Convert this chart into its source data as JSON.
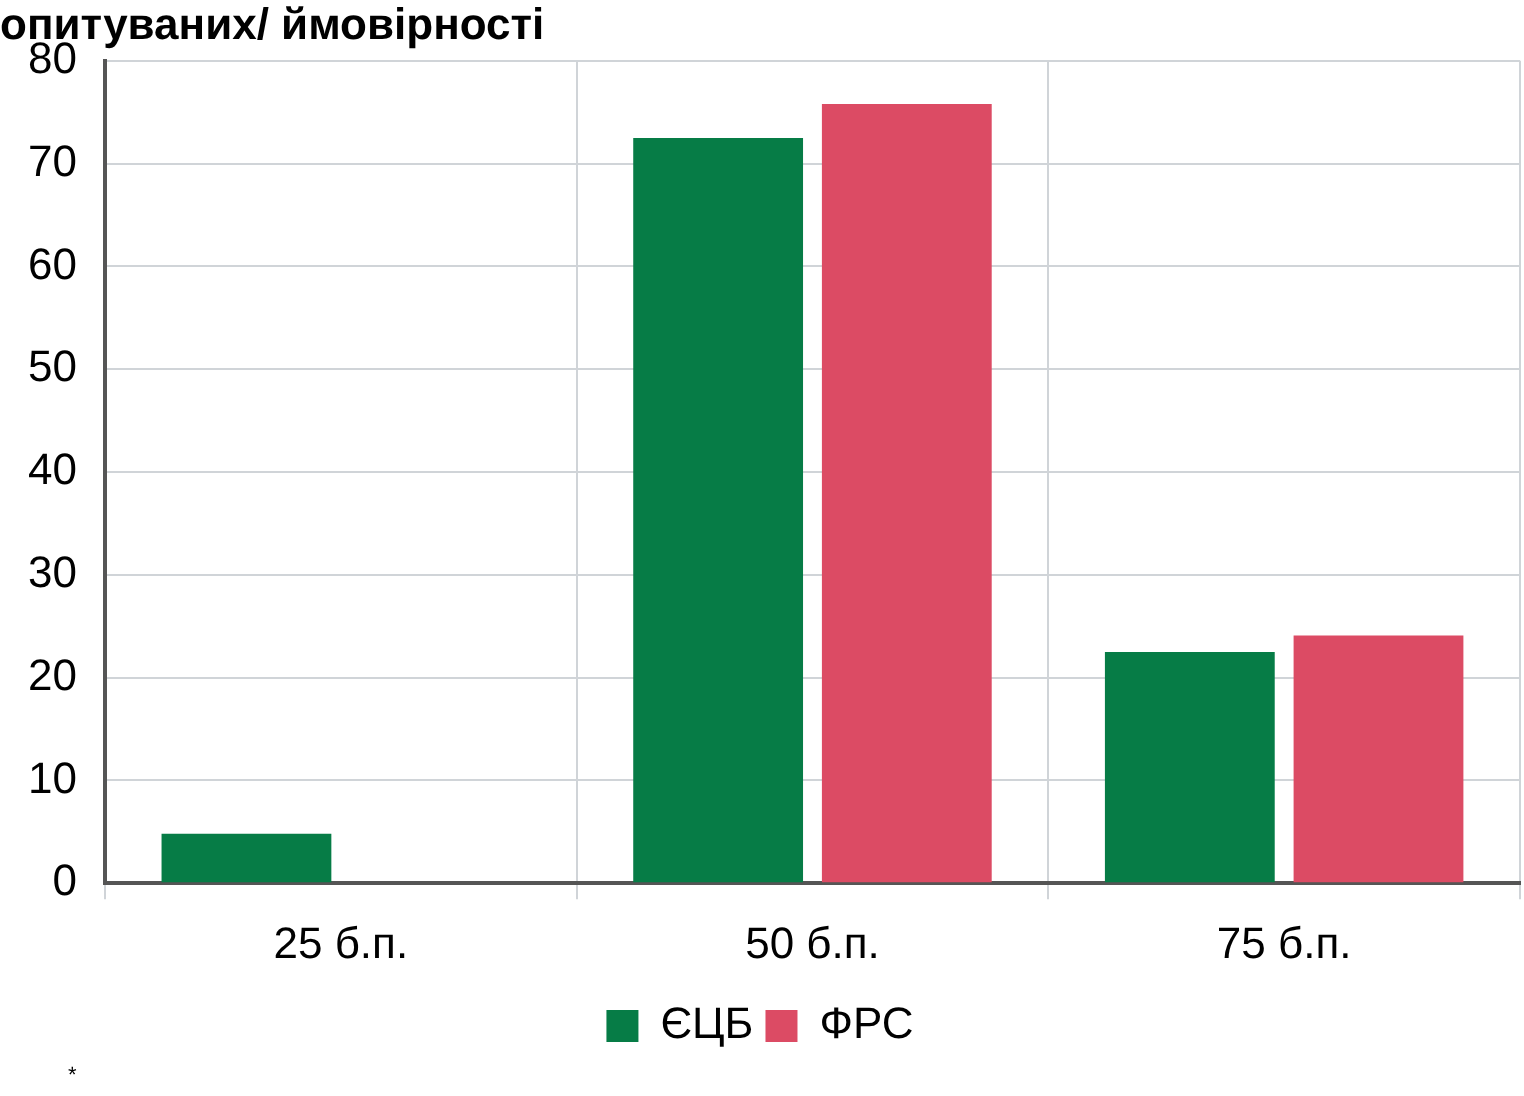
{
  "chart_data": {
    "type": "bar",
    "title": "опитуваних/ ймовірності",
    "categories": [
      "25 б.п.",
      "50 б.п.",
      "75 б.п."
    ],
    "series": [
      {
        "name": "ЄЦБ",
        "color": "#067c46",
        "values": [
          4.8,
          72.5,
          22.5
        ]
      },
      {
        "name": "ФРС",
        "color": "#dc4b64",
        "values": [
          0,
          75.8,
          24.1
        ]
      }
    ],
    "ylim": [
      0,
      80
    ],
    "yticks": [
      0,
      10,
      20,
      30,
      40,
      50,
      60,
      70,
      80
    ],
    "grid": true,
    "legend": "bottom",
    "annotations": [
      "*"
    ]
  }
}
